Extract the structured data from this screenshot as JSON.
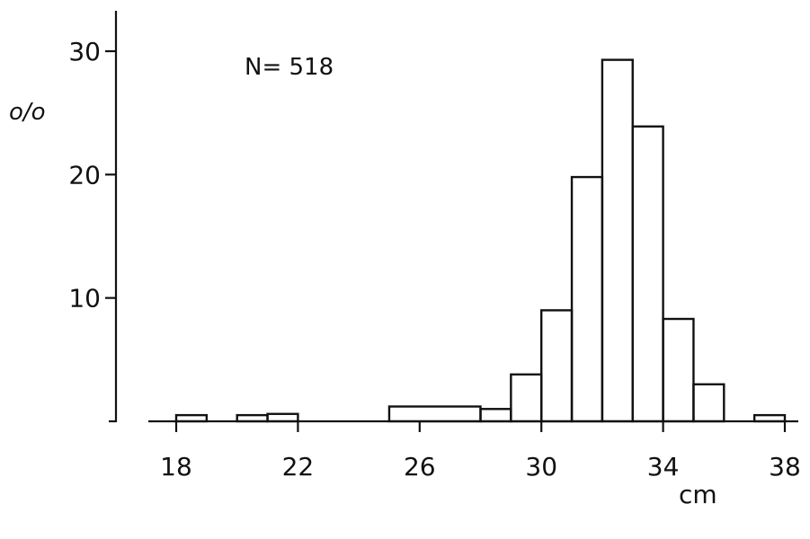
{
  "chart_data": {
    "type": "bar",
    "ylabel": "o/o",
    "xlabel": "cm",
    "annotation": "N= 518",
    "xlim": [
      18,
      38
    ],
    "ylim": [
      0,
      30
    ],
    "xticks": [
      18,
      22,
      26,
      30,
      34,
      38
    ],
    "yticks": [
      10,
      20,
      30
    ],
    "bins": [
      {
        "x0": 18,
        "x1": 19,
        "value": 0.5
      },
      {
        "x0": 19,
        "x1": 20,
        "value": 0
      },
      {
        "x0": 20,
        "x1": 21,
        "value": 0.5
      },
      {
        "x0": 21,
        "x1": 22,
        "value": 0.6
      },
      {
        "x0": 22,
        "x1": 25,
        "value": 0
      },
      {
        "x0": 25,
        "x1": 28,
        "value": 1.2
      },
      {
        "x0": 28,
        "x1": 29,
        "value": 1.0
      },
      {
        "x0": 29,
        "x1": 30,
        "value": 3.8
      },
      {
        "x0": 30,
        "x1": 31,
        "value": 9.0
      },
      {
        "x0": 31,
        "x1": 32,
        "value": 19.8
      },
      {
        "x0": 32,
        "x1": 33,
        "value": 29.3
      },
      {
        "x0": 33,
        "x1": 34,
        "value": 23.9
      },
      {
        "x0": 34,
        "x1": 35,
        "value": 8.3
      },
      {
        "x0": 35,
        "x1": 36,
        "value": 3.0
      },
      {
        "x0": 36,
        "x1": 37,
        "value": 0
      },
      {
        "x0": 37,
        "x1": 38,
        "value": 0.5
      }
    ]
  }
}
